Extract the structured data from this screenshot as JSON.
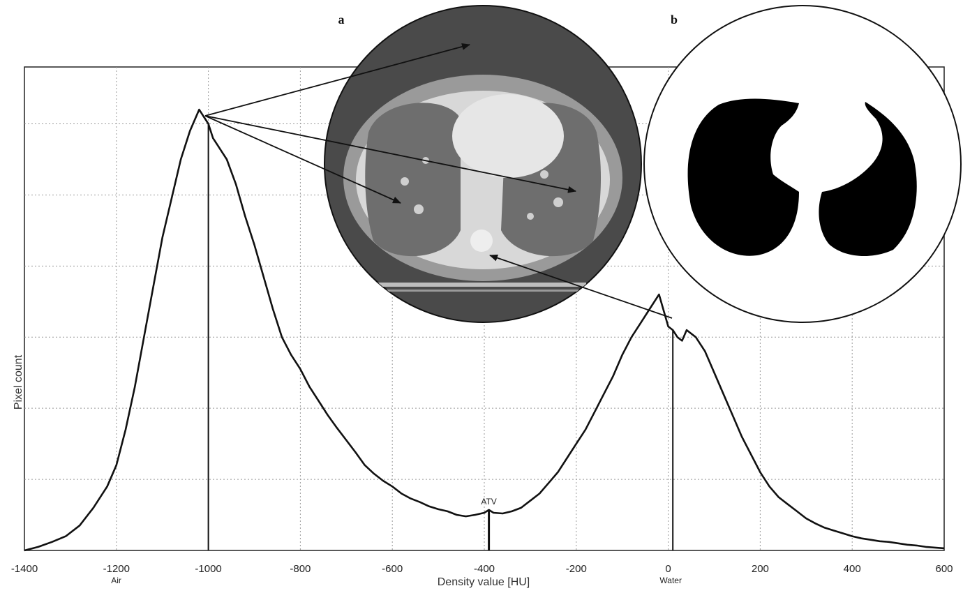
{
  "chart_data": {
    "type": "line",
    "xlabel": "Density value [HU]",
    "ylabel": "Pixel count",
    "xlim": [
      -1400,
      600
    ],
    "ylim": [
      0,
      6.8
    ],
    "x_ticks": [
      -1400,
      -1200,
      -1000,
      -800,
      -600,
      -400,
      -200,
      0,
      200,
      400,
      600
    ],
    "grid": true,
    "series": [
      {
        "x": [
          -1400,
          -1370,
          -1340,
          -1310,
          -1280,
          -1250,
          -1220,
          -1200,
          -1180,
          -1160,
          -1140,
          -1120,
          -1100,
          -1080,
          -1060,
          -1040,
          -1020,
          -1000,
          -990,
          -980,
          -970,
          -960,
          -940,
          -920,
          -900,
          -880,
          -860,
          -840,
          -820,
          -800,
          -780,
          -760,
          -740,
          -720,
          -700,
          -680,
          -660,
          -640,
          -620,
          -600,
          -580,
          -560,
          -540,
          -520,
          -500,
          -480,
          -460,
          -440,
          -420,
          -400,
          -390,
          -380,
          -360,
          -340,
          -320,
          -300,
          -280,
          -260,
          -240,
          -220,
          -200,
          -180,
          -160,
          -140,
          -120,
          -100,
          -80,
          -60,
          -40,
          -20,
          0,
          10,
          20,
          30,
          40,
          60,
          80,
          100,
          120,
          140,
          160,
          180,
          200,
          220,
          240,
          260,
          280,
          300,
          320,
          340,
          360,
          380,
          400,
          420,
          440,
          460,
          480,
          500,
          520,
          540,
          560,
          580,
          600
        ],
        "y": [
          0.0,
          0.05,
          0.12,
          0.2,
          0.35,
          0.6,
          0.9,
          1.2,
          1.7,
          2.3,
          3.0,
          3.7,
          4.4,
          4.95,
          5.5,
          5.9,
          6.2,
          6.0,
          5.8,
          5.7,
          5.6,
          5.5,
          5.15,
          4.7,
          4.3,
          3.85,
          3.4,
          3.0,
          2.75,
          2.55,
          2.3,
          2.1,
          1.9,
          1.72,
          1.55,
          1.38,
          1.2,
          1.08,
          0.98,
          0.9,
          0.8,
          0.73,
          0.68,
          0.62,
          0.58,
          0.55,
          0.5,
          0.48,
          0.5,
          0.53,
          0.57,
          0.53,
          0.52,
          0.55,
          0.6,
          0.7,
          0.8,
          0.95,
          1.1,
          1.3,
          1.5,
          1.7,
          1.95,
          2.2,
          2.45,
          2.75,
          3.0,
          3.2,
          3.4,
          3.6,
          3.15,
          3.1,
          3.0,
          2.95,
          3.1,
          3.0,
          2.8,
          2.5,
          2.2,
          1.9,
          1.6,
          1.35,
          1.1,
          0.9,
          0.75,
          0.65,
          0.55,
          0.45,
          0.38,
          0.32,
          0.28,
          0.24,
          0.2,
          0.17,
          0.15,
          0.13,
          0.12,
          0.1,
          0.08,
          0.07,
          0.05,
          0.04,
          0.03
        ]
      }
    ],
    "markers": [
      {
        "x": -1000,
        "label": "Air"
      },
      {
        "x": -390,
        "label": "ATV"
      },
      {
        "x": 10,
        "label": "Water"
      }
    ]
  },
  "panels": {
    "a": {
      "label": "a"
    },
    "b": {
      "label": "b"
    }
  }
}
